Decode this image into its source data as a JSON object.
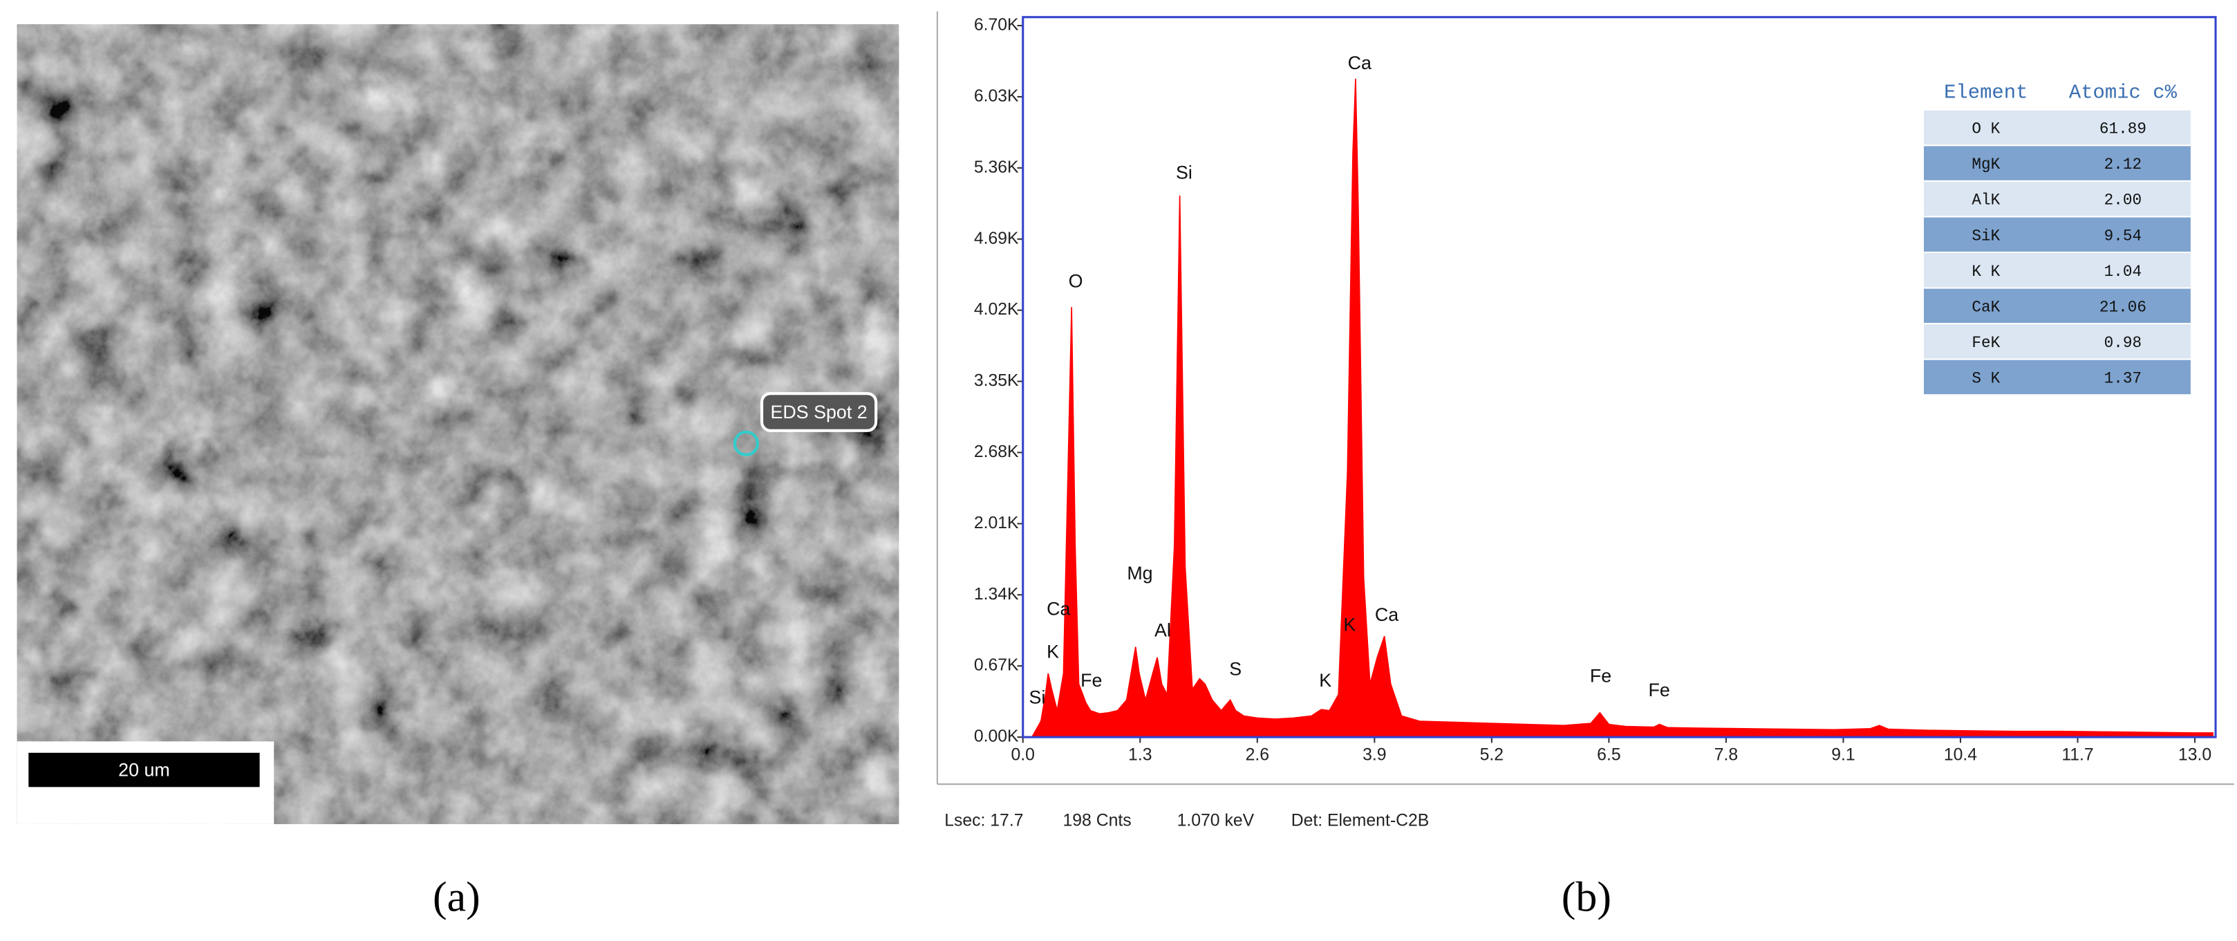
{
  "panel_a": {
    "spot_label": "EDS Spot 2",
    "scale_bar": "20 um",
    "caption": "(a)"
  },
  "chart_data": {
    "type": "area",
    "color": "#ff0000",
    "x": [
      0.1,
      0.2,
      0.25,
      0.28,
      0.32,
      0.38,
      0.45,
      0.5,
      0.54,
      0.58,
      0.62,
      0.7,
      0.75,
      0.85,
      0.95,
      1.05,
      1.15,
      1.22,
      1.25,
      1.29,
      1.36,
      1.44,
      1.49,
      1.54,
      1.6,
      1.68,
      1.74,
      1.8,
      1.88,
      1.96,
      2.02,
      2.1,
      2.2,
      2.3,
      2.36,
      2.45,
      2.6,
      2.8,
      3.0,
      3.2,
      3.31,
      3.4,
      3.5,
      3.6,
      3.66,
      3.69,
      3.72,
      3.78,
      3.85,
      3.93,
      4.01,
      4.08,
      4.2,
      4.4,
      4.8,
      5.2,
      5.6,
      6.0,
      6.3,
      6.4,
      6.5,
      6.7,
      7.0,
      7.06,
      7.15,
      7.5,
      8.0,
      8.5,
      9.0,
      9.4,
      9.5,
      9.6,
      10.0,
      10.5,
      11.0,
      11.5,
      12.0,
      12.5,
      13.0,
      13.2
    ],
    "values": [
      0,
      150,
      400,
      600,
      450,
      250,
      600,
      2500,
      4050,
      1800,
      500,
      320,
      250,
      220,
      230,
      250,
      350,
      700,
      850,
      600,
      350,
      600,
      750,
      500,
      400,
      1800,
      5100,
      1600,
      450,
      550,
      500,
      350,
      250,
      350,
      250,
      200,
      180,
      170,
      180,
      200,
      260,
      250,
      400,
      2500,
      5500,
      6200,
      5000,
      1500,
      500,
      750,
      950,
      500,
      200,
      150,
      140,
      130,
      120,
      110,
      130,
      230,
      120,
      100,
      95,
      120,
      90,
      85,
      80,
      75,
      70,
      80,
      110,
      75,
      65,
      60,
      55,
      55,
      50,
      45,
      40,
      40
    ],
    "xlim": [
      0,
      13.23
    ],
    "ylim": [
      0,
      6780
    ],
    "xticks": [
      {
        "value": 0,
        "label": "0.0"
      },
      1.3,
      2.6,
      3.9,
      5.2,
      6.5,
      7.8,
      9.1,
      10.4,
      11.7,
      {
        "value": 13,
        "label": "13.0"
      }
    ],
    "yticks": [
      {
        "value": 0,
        "label": "0.00K"
      },
      {
        "value": 670,
        "label": "0.67K"
      },
      {
        "value": 1340,
        "label": "1.34K"
      },
      {
        "value": 2010,
        "label": "2.01K"
      },
      {
        "value": 2680,
        "label": "2.68K"
      },
      {
        "value": 3350,
        "label": "3.35K"
      },
      {
        "value": 4020,
        "label": "4.02K"
      },
      {
        "value": 4690,
        "label": "4.69K"
      },
      {
        "value": 5360,
        "label": "5.36K"
      },
      {
        "value": 6030,
        "label": "6.03K"
      },
      {
        "value": 6700,
        "label": "6.70K"
      }
    ],
    "annotations": [
      "Si",
      "K",
      "Ca",
      "O",
      "Fe",
      "Mg",
      "Al",
      "Si",
      "S",
      "K",
      "Ca",
      "K",
      "Ca",
      "Fe",
      "Fe"
    ]
  },
  "table": {
    "header": [
      "Element",
      "Atomic c%"
    ],
    "rows": [
      [
        "O K",
        "61.89"
      ],
      [
        "MgK",
        "2.12"
      ],
      [
        "AlK",
        "2.00"
      ],
      [
        "SiK",
        "9.54"
      ],
      [
        "K K",
        "1.04"
      ],
      [
        "CaK",
        "21.06"
      ],
      [
        "FeK",
        "0.98"
      ],
      [
        "S K",
        "1.37"
      ]
    ]
  },
  "footer": [
    "Lsec: 17.7",
    "198 Cnts",
    "1.070 keV",
    "Det: Element-C2B"
  ],
  "caption_b": "(b)"
}
